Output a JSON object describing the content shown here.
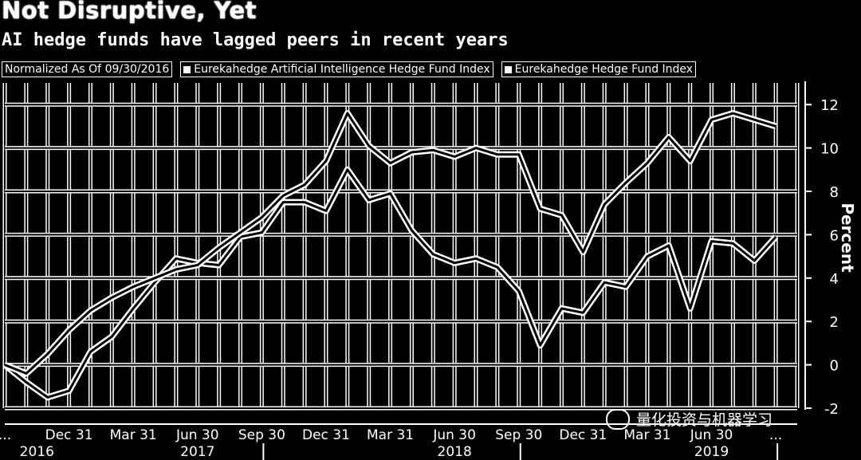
{
  "header": {
    "title": "Not Disruptive, Yet",
    "subtitle": "AI hedge funds have lagged peers in recent years"
  },
  "legend": {
    "note": "Normalized As Of 09/30/2016",
    "items": [
      "Eurekahedge Artificial Intelligence Hedge Fund Index",
      "Eurekahedge Hedge Fund Index"
    ]
  },
  "watermark": {
    "text": "量化投资与机器学习",
    "icon": "wechat-icon"
  },
  "chart_data": {
    "type": "line",
    "ylabel": "Percent",
    "ylim": [
      -2,
      13
    ],
    "yticks": [
      -2,
      0,
      2,
      4,
      6,
      8,
      10,
      12
    ],
    "xticks": [
      {
        "label": "...",
        "month": 0
      },
      {
        "label": "Dec 31",
        "month": 3
      },
      {
        "label": "Mar 31",
        "month": 6
      },
      {
        "label": "Jun 30",
        "month": 9
      },
      {
        "label": "Sep 30",
        "month": 12
      },
      {
        "label": "Dec 31",
        "month": 15
      },
      {
        "label": "Mar 31",
        "month": 18
      },
      {
        "label": "Jun 30",
        "month": 21
      },
      {
        "label": "Sep 30",
        "month": 24
      },
      {
        "label": "Dec 31",
        "month": 27
      },
      {
        "label": "Mar 31",
        "month": 30
      },
      {
        "label": "Jun 30",
        "month": 33
      },
      {
        "label": "...",
        "month": 36
      }
    ],
    "years": [
      {
        "label": "2016",
        "month": 1.5
      },
      {
        "label": "2017",
        "month": 9
      },
      {
        "label": "2018",
        "month": 21
      },
      {
        "label": "2019",
        "month": 33
      }
    ],
    "xlim": [
      0,
      37
    ],
    "grid": true,
    "series": [
      {
        "name": "Eurekahedge Artificial Intelligence Hedge Fund Index",
        "x": [
          0,
          1,
          2,
          3,
          4,
          5,
          6,
          7,
          8,
          9,
          10,
          11,
          12,
          13,
          14,
          15,
          16,
          17,
          18,
          19,
          20,
          21,
          22,
          23,
          24,
          25,
          26,
          27,
          28,
          29,
          30,
          31,
          32,
          33,
          34,
          35,
          36
        ],
        "values": [
          0,
          -0.8,
          -1.5,
          -1.2,
          0.6,
          1.3,
          2.6,
          3.8,
          4.9,
          4.7,
          4.6,
          5.9,
          6.1,
          7.5,
          7.5,
          7.1,
          9.0,
          7.6,
          7.9,
          6.2,
          5.1,
          4.7,
          4.9,
          4.5,
          3.4,
          0.9,
          2.6,
          2.4,
          3.8,
          3.6,
          5.0,
          5.5,
          2.6,
          5.7,
          5.6,
          4.8,
          5.9
        ]
      },
      {
        "name": "Eurekahedge Hedge Fund Index",
        "x": [
          0,
          1,
          2,
          3,
          4,
          5,
          6,
          7,
          8,
          9,
          10,
          11,
          12,
          13,
          14,
          15,
          16,
          17,
          18,
          19,
          20,
          21,
          22,
          23,
          24,
          25,
          26,
          27,
          28,
          29,
          30,
          31,
          32,
          33,
          34,
          35,
          36
        ],
        "values": [
          0,
          -0.4,
          0.5,
          1.6,
          2.5,
          3.1,
          3.6,
          4.0,
          4.4,
          4.6,
          5.4,
          6.1,
          6.8,
          7.8,
          8.3,
          9.4,
          11.6,
          10.1,
          9.3,
          9.8,
          9.9,
          9.6,
          10.0,
          9.7,
          9.7,
          7.2,
          6.9,
          5.2,
          7.4,
          8.4,
          9.3,
          10.5,
          9.4,
          11.3,
          11.6,
          11.3,
          11.0
        ]
      }
    ]
  }
}
